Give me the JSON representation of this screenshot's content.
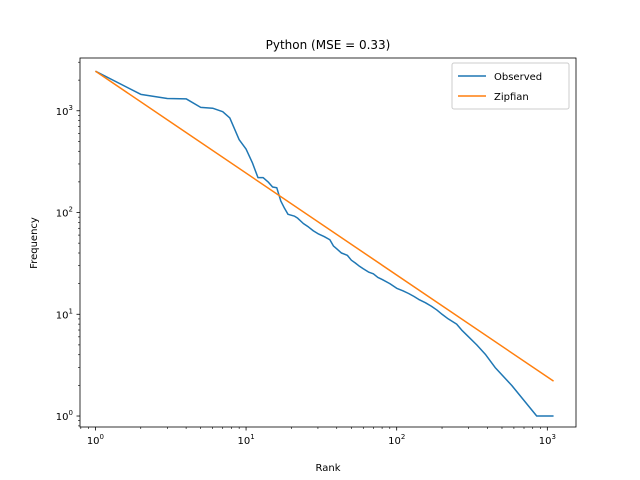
{
  "chart_data": {
    "type": "line",
    "title": "Python (MSE = 0.33)",
    "xlabel": "Rank",
    "ylabel": "Frequency",
    "xscale": "log",
    "yscale": "log",
    "xlim": [
      0.79,
      1550
    ],
    "ylim": [
      0.78,
      3300
    ],
    "grid": false,
    "legend_position": "top-right",
    "x_ticks": [
      {
        "value": 1,
        "mantissa": "10",
        "exp": "0"
      },
      {
        "value": 10,
        "mantissa": "10",
        "exp": "1"
      },
      {
        "value": 100,
        "mantissa": "10",
        "exp": "2"
      },
      {
        "value": 1000,
        "mantissa": "10",
        "exp": "3"
      }
    ],
    "y_ticks": [
      {
        "value": 1,
        "mantissa": "10",
        "exp": "0"
      },
      {
        "value": 10,
        "mantissa": "10",
        "exp": "1"
      },
      {
        "value": 100,
        "mantissa": "10",
        "exp": "2"
      },
      {
        "value": 1000,
        "mantissa": "10",
        "exp": "3"
      }
    ],
    "series": [
      {
        "name": "Observed",
        "color": "#1f77b4",
        "points": [
          [
            1,
            2450
          ],
          [
            2,
            1450
          ],
          [
            3,
            1320
          ],
          [
            4,
            1310
          ],
          [
            5,
            1080
          ],
          [
            6,
            1060
          ],
          [
            7,
            980
          ],
          [
            7.8,
            850
          ],
          [
            9,
            520
          ],
          [
            10,
            420
          ],
          [
            11,
            310
          ],
          [
            12,
            220
          ],
          [
            13,
            220
          ],
          [
            14,
            200
          ],
          [
            15,
            178
          ],
          [
            16,
            175
          ],
          [
            17,
            130
          ],
          [
            18,
            110
          ],
          [
            19,
            96
          ],
          [
            21,
            92
          ],
          [
            22,
            88
          ],
          [
            24,
            78
          ],
          [
            26,
            72
          ],
          [
            28,
            66
          ],
          [
            30,
            62
          ],
          [
            33,
            58
          ],
          [
            36,
            54
          ],
          [
            38,
            47
          ],
          [
            40,
            44
          ],
          [
            43,
            40
          ],
          [
            47,
            38
          ],
          [
            50,
            34
          ],
          [
            53,
            32
          ],
          [
            56,
            30
          ],
          [
            60,
            28
          ],
          [
            65,
            26
          ],
          [
            70,
            25
          ],
          [
            75,
            23
          ],
          [
            80,
            22
          ],
          [
            90,
            20
          ],
          [
            100,
            18
          ],
          [
            110,
            17
          ],
          [
            120,
            16
          ],
          [
            130,
            15
          ],
          [
            140,
            14
          ],
          [
            155,
            13
          ],
          [
            170,
            12
          ],
          [
            185,
            11
          ],
          [
            200,
            10
          ],
          [
            220,
            9
          ],
          [
            250,
            8
          ],
          [
            270,
            7
          ],
          [
            300,
            6
          ],
          [
            340,
            5
          ],
          [
            390,
            4
          ],
          [
            450,
            3
          ],
          [
            580,
            2
          ],
          [
            850,
            1
          ],
          [
            1100,
            1
          ]
        ],
        "step": true
      },
      {
        "name": "Zipfian",
        "color": "#ff7f0e",
        "points": [
          [
            1,
            2450
          ],
          [
            1100,
            2.2
          ]
        ],
        "step": false
      }
    ]
  }
}
